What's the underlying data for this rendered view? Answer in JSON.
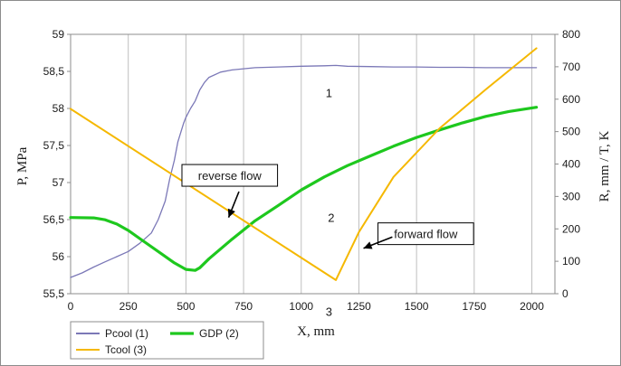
{
  "chart_data": {
    "type": "line",
    "xlabel": "X, mm",
    "ylabel": "P, MPa",
    "y2label": "R, mm / T, K",
    "xlim": [
      0,
      2100
    ],
    "ylim": [
      55.5,
      59
    ],
    "y2lim": [
      0,
      800
    ],
    "x_ticks": [
      "0",
      "250",
      "500",
      "750",
      "1000",
      "1250",
      "1500",
      "1750",
      "2000"
    ],
    "y_ticks": [
      "55,5",
      "56",
      "56,5",
      "57",
      "57,5",
      "58",
      "58,5",
      "59"
    ],
    "y2_ticks": [
      "0",
      "100",
      "200",
      "300",
      "400",
      "500",
      "600",
      "700",
      "800"
    ],
    "grid": "vertical",
    "legend_position": "bottom-left",
    "series": [
      {
        "name": "Pcool (1)",
        "axis": "left",
        "color": "#7b78b7",
        "x": [
          0,
          50,
          100,
          150,
          200,
          250,
          300,
          350,
          380,
          410,
          430,
          450,
          465,
          480,
          490,
          500,
          520,
          540,
          560,
          580,
          600,
          650,
          700,
          800,
          900,
          1000,
          1100,
          1150,
          1200,
          1300,
          1400,
          1500,
          1600,
          1700,
          1800,
          1900,
          2020
        ],
        "y": [
          55.72,
          55.78,
          55.86,
          55.93,
          56.0,
          56.07,
          56.18,
          56.32,
          56.5,
          56.75,
          57.05,
          57.3,
          57.55,
          57.7,
          57.8,
          57.88,
          58.0,
          58.1,
          58.25,
          58.35,
          58.42,
          58.49,
          58.52,
          58.55,
          58.56,
          58.57,
          58.575,
          58.58,
          58.57,
          58.565,
          58.56,
          58.56,
          58.555,
          58.555,
          58.55,
          58.55,
          58.55
        ]
      },
      {
        "name": "GDP (2)",
        "axis": "right",
        "color": "#1ec81e",
        "x": [
          0,
          100,
          150,
          200,
          250,
          300,
          350,
          400,
          450,
          500,
          540,
          560,
          600,
          700,
          800,
          900,
          1000,
          1100,
          1200,
          1300,
          1400,
          1500,
          1600,
          1700,
          1800,
          1900,
          2020
        ],
        "y": [
          235,
          234,
          228,
          215,
          195,
          170,
          145,
          120,
          95,
          75,
          72,
          80,
          108,
          168,
          225,
          272,
          320,
          360,
          395,
          425,
          455,
          482,
          505,
          527,
          547,
          562,
          575
        ]
      },
      {
        "name": "Tcool (3)",
        "axis": "right",
        "color": "#f5b800",
        "x": [
          0,
          1150,
          1250,
          1400,
          1600,
          1800,
          2020
        ],
        "y": [
          570,
          42,
          190,
          360,
          510,
          630,
          757
        ]
      }
    ],
    "annotations": [
      {
        "text": "1",
        "x": 1120,
        "y": 620
      },
      {
        "text": "2",
        "x": 1130,
        "y": 235
      },
      {
        "text": "3",
        "x": 1120,
        "y": -54
      },
      {
        "text": "reverse flow",
        "box": true,
        "x": 690,
        "y": 365
      },
      {
        "text": "forward flow",
        "box": true,
        "x": 1540,
        "y": 185
      }
    ]
  }
}
